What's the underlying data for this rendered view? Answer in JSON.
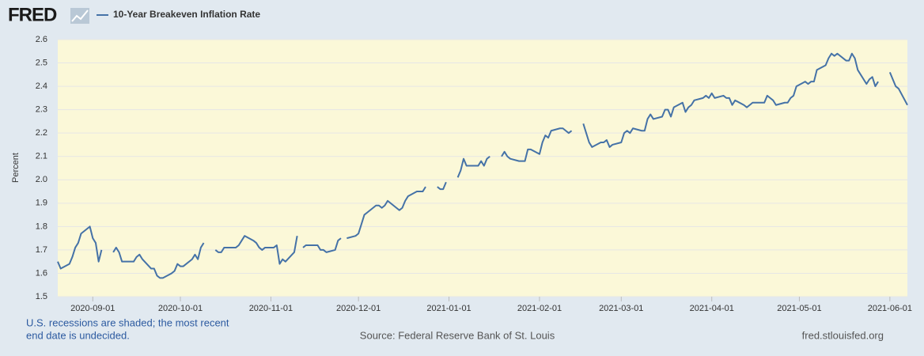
{
  "header": {
    "logo": "FRED"
  },
  "footer": {
    "note": [
      "U.S. recessions are shaded; the most recent",
      "end date is undecided."
    ],
    "source": "Source: Federal Reserve Bank of St. Louis",
    "site": "fred.stlouisfed.org"
  },
  "chart_data": {
    "type": "line",
    "y_label": "Percent",
    "grid": true,
    "xlim": [
      "2020-08-20",
      "2021-06-07"
    ],
    "xticks": [
      "2020-09-01",
      "2020-10-01",
      "2020-11-01",
      "2020-12-01",
      "2021-01-01",
      "2021-02-01",
      "2021-03-01",
      "2021-04-01",
      "2021-05-01",
      "2021-06-01"
    ],
    "ylim": [
      1.5,
      2.6
    ],
    "yticks": [
      1.5,
      1.6,
      1.7,
      1.8,
      1.9,
      {
        "value": 2,
        "label": "2.0"
      },
      2.1,
      2.2,
      2.3,
      2.4,
      2.5,
      2.6
    ],
    "x": [
      "2020-08-20",
      "2020-08-21",
      "2020-08-24",
      "2020-08-25",
      "2020-08-26",
      "2020-08-27",
      "2020-08-28",
      "2020-08-31",
      "2020-09-01",
      "2020-09-02",
      "2020-09-03",
      "2020-09-04",
      "2020-09-07",
      "2020-09-08",
      "2020-09-09",
      "2020-09-10",
      "2020-09-11",
      "2020-09-14",
      "2020-09-15",
      "2020-09-16",
      "2020-09-17",
      "2020-09-18",
      "2020-09-21",
      "2020-09-22",
      "2020-09-23",
      "2020-09-24",
      "2020-09-25",
      "2020-09-28",
      "2020-09-29",
      "2020-09-30",
      "2020-10-01",
      "2020-10-02",
      "2020-10-05",
      "2020-10-06",
      "2020-10-07",
      "2020-10-08",
      "2020-10-09",
      "2020-10-12",
      "2020-10-13",
      "2020-10-14",
      "2020-10-15",
      "2020-10-16",
      "2020-10-19",
      "2020-10-20",
      "2020-10-21",
      "2020-10-22",
      "2020-10-23",
      "2020-10-26",
      "2020-10-27",
      "2020-10-28",
      "2020-10-29",
      "2020-10-30",
      "2020-11-02",
      "2020-11-03",
      "2020-11-04",
      "2020-11-05",
      "2020-11-06",
      "2020-11-09",
      "2020-11-10",
      "2020-11-11",
      "2020-11-12",
      "2020-11-13",
      "2020-11-16",
      "2020-11-17",
      "2020-11-18",
      "2020-11-19",
      "2020-11-20",
      "2020-11-23",
      "2020-11-24",
      "2020-11-25",
      "2020-11-26",
      "2020-11-27",
      "2020-11-30",
      "2020-12-01",
      "2020-12-02",
      "2020-12-03",
      "2020-12-04",
      "2020-12-07",
      "2020-12-08",
      "2020-12-09",
      "2020-12-10",
      "2020-12-11",
      "2020-12-14",
      "2020-12-15",
      "2020-12-16",
      "2020-12-17",
      "2020-12-18",
      "2020-12-21",
      "2020-12-22",
      "2020-12-23",
      "2020-12-24",
      "2020-12-25",
      "2020-12-28",
      "2020-12-29",
      "2020-12-30",
      "2020-12-31",
      "2021-01-01",
      "2021-01-04",
      "2021-01-05",
      "2021-01-06",
      "2021-01-07",
      "2021-01-08",
      "2021-01-11",
      "2021-01-12",
      "2021-01-13",
      "2021-01-14",
      "2021-01-15",
      "2021-01-18",
      "2021-01-19",
      "2021-01-20",
      "2021-01-21",
      "2021-01-22",
      "2021-01-25",
      "2021-01-26",
      "2021-01-27",
      "2021-01-28",
      "2021-01-29",
      "2021-02-01",
      "2021-02-02",
      "2021-02-03",
      "2021-02-04",
      "2021-02-05",
      "2021-02-08",
      "2021-02-09",
      "2021-02-10",
      "2021-02-11",
      "2021-02-12",
      "2021-02-15",
      "2021-02-16",
      "2021-02-17",
      "2021-02-18",
      "2021-02-19",
      "2021-02-22",
      "2021-02-23",
      "2021-02-24",
      "2021-02-25",
      "2021-02-26",
      "2021-03-01",
      "2021-03-02",
      "2021-03-03",
      "2021-03-04",
      "2021-03-05",
      "2021-03-08",
      "2021-03-09",
      "2021-03-10",
      "2021-03-11",
      "2021-03-12",
      "2021-03-15",
      "2021-03-16",
      "2021-03-17",
      "2021-03-18",
      "2021-03-19",
      "2021-03-22",
      "2021-03-23",
      "2021-03-24",
      "2021-03-25",
      "2021-03-26",
      "2021-03-29",
      "2021-03-30",
      "2021-03-31",
      "2021-04-01",
      "2021-04-02",
      "2021-04-05",
      "2021-04-06",
      "2021-04-07",
      "2021-04-08",
      "2021-04-09",
      "2021-04-12",
      "2021-04-13",
      "2021-04-14",
      "2021-04-15",
      "2021-04-16",
      "2021-04-19",
      "2021-04-20",
      "2021-04-21",
      "2021-04-22",
      "2021-04-23",
      "2021-04-26",
      "2021-04-27",
      "2021-04-28",
      "2021-04-29",
      "2021-04-30",
      "2021-05-03",
      "2021-05-04",
      "2021-05-05",
      "2021-05-06",
      "2021-05-07",
      "2021-05-10",
      "2021-05-11",
      "2021-05-12",
      "2021-05-13",
      "2021-05-14",
      "2021-05-17",
      "2021-05-18",
      "2021-05-19",
      "2021-05-20",
      "2021-05-21",
      "2021-05-24",
      "2021-05-25",
      "2021-05-26",
      "2021-05-27",
      "2021-05-28",
      "2021-05-31",
      "2021-06-01",
      "2021-06-02",
      "2021-06-03",
      "2021-06-04",
      "2021-06-07"
    ],
    "series": [
      {
        "name": "10-Year Breakeven Inflation Rate",
        "color": "#4572a7",
        "values": [
          1.65,
          1.62,
          1.64,
          1.67,
          1.71,
          1.73,
          1.77,
          1.8,
          1.75,
          1.73,
          1.65,
          1.7,
          null,
          1.69,
          1.71,
          1.69,
          1.65,
          1.65,
          1.65,
          1.67,
          1.68,
          1.66,
          1.62,
          1.62,
          1.59,
          1.58,
          1.58,
          1.6,
          1.61,
          1.64,
          1.63,
          1.63,
          1.66,
          1.68,
          1.66,
          1.71,
          1.73,
          null,
          1.7,
          1.69,
          1.69,
          1.71,
          1.71,
          1.71,
          1.72,
          1.74,
          1.76,
          1.74,
          1.73,
          1.71,
          1.7,
          1.71,
          1.71,
          1.72,
          1.64,
          1.66,
          1.65,
          1.69,
          1.76,
          null,
          1.71,
          1.72,
          1.72,
          1.72,
          1.7,
          1.7,
          1.69,
          1.7,
          1.74,
          1.75,
          null,
          1.75,
          1.76,
          1.77,
          1.81,
          1.85,
          1.86,
          1.89,
          1.89,
          1.88,
          1.89,
          1.91,
          1.88,
          1.87,
          1.88,
          1.91,
          1.93,
          1.95,
          1.95,
          1.95,
          1.97,
          null,
          1.97,
          1.96,
          1.96,
          1.99,
          null,
          2.01,
          2.04,
          2.09,
          2.06,
          2.06,
          2.06,
          2.08,
          2.06,
          2.09,
          2.1,
          null,
          2.1,
          2.12,
          2.1,
          2.09,
          2.08,
          2.08,
          2.08,
          2.13,
          2.13,
          2.11,
          2.16,
          2.19,
          2.18,
          2.21,
          2.22,
          2.22,
          2.21,
          2.2,
          2.21,
          null,
          2.24,
          2.2,
          2.16,
          2.14,
          2.16,
          2.16,
          2.17,
          2.14,
          2.15,
          2.16,
          2.2,
          2.21,
          2.2,
          2.22,
          2.21,
          2.21,
          2.26,
          2.28,
          2.26,
          2.27,
          2.3,
          2.3,
          2.27,
          2.31,
          2.33,
          2.29,
          2.31,
          2.32,
          2.34,
          2.35,
          2.36,
          2.35,
          2.37,
          2.35,
          2.36,
          2.35,
          2.35,
          2.32,
          2.34,
          2.32,
          2.31,
          2.32,
          2.33,
          2.33,
          2.33,
          2.36,
          2.35,
          2.34,
          2.32,
          2.33,
          2.33,
          2.35,
          2.36,
          2.4,
          2.42,
          2.41,
          2.42,
          2.42,
          2.47,
          2.49,
          2.52,
          2.54,
          2.53,
          2.54,
          2.51,
          2.51,
          2.54,
          2.52,
          2.47,
          2.41,
          2.43,
          2.44,
          2.4,
          2.42,
          null,
          2.46,
          2.43,
          2.4,
          2.39,
          2.32
        ]
      }
    ]
  }
}
